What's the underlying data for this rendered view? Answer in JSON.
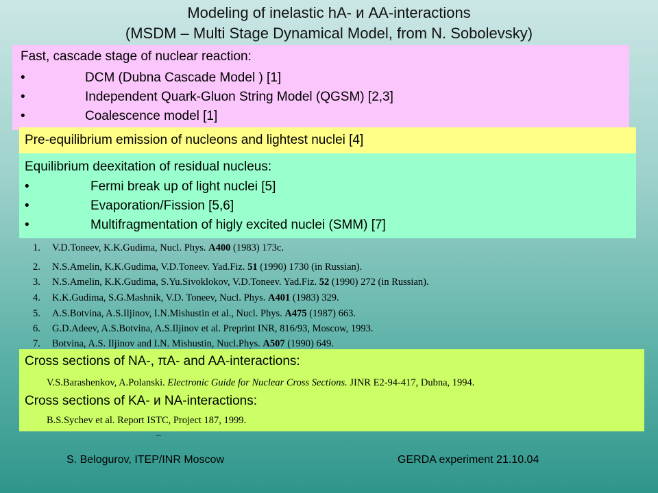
{
  "title": {
    "line1": "Modeling of inelastic hA- и AA-interactions",
    "line2": "(MSDM – Multi Stage Dynamical Model, from N. Sobolevsky)"
  },
  "cascade": {
    "heading": "Fast, cascade stage of  nuclear reaction:",
    "items": [
      "DCM (Dubna Cascade Model ) [1]",
      "Independent Quark-Gluon String Model (QGSM) [2,3]",
      "Coalescence model [1]"
    ]
  },
  "preequilibrium": {
    "text": "Pre-equilibrium  emission  of nucleons  and lightest  nuclei  [4]"
  },
  "equilibrium": {
    "heading": "Equilibrium  deexitation of residual nucleus:",
    "items": [
      "Fermi break up of light nuclei [5]",
      "Evaporation/Fission [5,6]",
      "Multifragmentation of higly excited nuclei (SMM) [7]"
    ]
  },
  "references": [
    {
      "num": "1.",
      "pre": "V.D.Toneev, K.K.Gudima, Nucl. Phys. ",
      "bold": "A400",
      "post": " (1983) 173c."
    },
    {
      "num": "2.",
      "pre": "N.S.Amelin, K.K.Gudima, V.D.Toneev. Yad.Fiz. ",
      "bold": "51",
      "post": " (1990) 1730 (in Russian)."
    },
    {
      "num": "3.",
      "pre": "N.S.Amelin, K.K.Gudima, S.Yu.Sivoklokov, V.D.Toneev. Yad.Fiz. ",
      "bold": "52",
      "post": " (1990) 272 (in Russian)."
    },
    {
      "num": "4.",
      "pre": "K.K.Gudima, S.G.Mashnik, V.D. Toneev, Nucl. Phys. ",
      "bold": "A401",
      "post": " (1983) 329."
    },
    {
      "num": "5.",
      "pre": "A.S.Botvina, A.S.Iljinov, I.N.Mishustin et al., Nucl. Phys. ",
      "bold": "A475",
      "post": " (1987) 663."
    },
    {
      "num": "6.",
      "pre": "G.D.Adeev, A.S.Botvina, A.S.Iljinov et al. Preprint INR, 816/93, Moscow, 1993.",
      "bold": "",
      "post": ""
    },
    {
      "num": "7.",
      "pre": "Botvina, A.S. Iljinov and I.N. Mishustin, Nucl.Phys. ",
      "bold": "A507",
      "post": " (1990) 649."
    }
  ],
  "cross_sections": {
    "heading1_pre": "Cross sections of NA-, ",
    "heading1_pi": "π",
    "heading1_post": "A-  and  AA-interactions:",
    "ref1_pre": "V.S.Barashenkov, A.Polanski. ",
    "ref1_italic": "Electronic Guide for Nuclear Cross Sections.",
    "ref1_post": " JINR E2-94-417, Dubna, 1994.",
    "heading2": "Cross sections of KA- и NA-interactions:",
    "ref2": "B.S.Sychev et al. Report ISTC, Project 187, 1999.",
    "dash": "–"
  },
  "footer": {
    "left": "S. Belogurov, ITEP/INR Moscow",
    "right": "GERDA experiment  21.10.04"
  },
  "colors": {
    "pink": "#fbc6fb",
    "yellow": "#ffff88",
    "mint": "#99ffcc",
    "lime": "#ccff66"
  }
}
